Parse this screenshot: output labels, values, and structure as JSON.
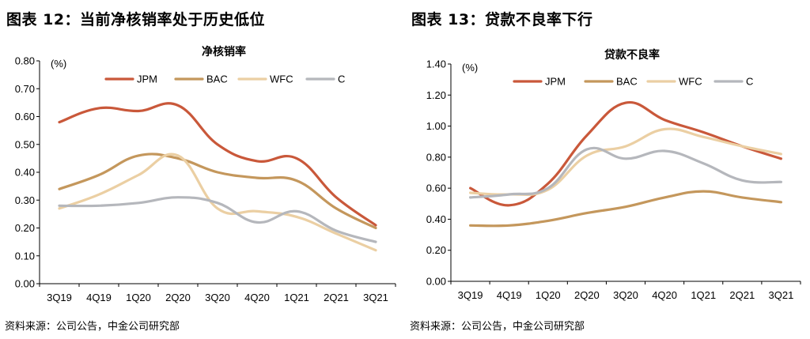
{
  "charts": [
    {
      "figure_title": "图表 12：当前净核销率处于历史低位",
      "source": "资料来源：公司公告，中金公司研究部"
    },
    {
      "figure_title": "图表 13：贷款不良率下行",
      "source": "资料来源：公司公告，中金公司研究部"
    }
  ],
  "chart_data": [
    {
      "type": "line",
      "title": "净核销率",
      "unit_label": "(%)",
      "categories": [
        "3Q19",
        "4Q19",
        "1Q20",
        "2Q20",
        "3Q20",
        "4Q20",
        "1Q21",
        "2Q21",
        "3Q21"
      ],
      "ylim": [
        0,
        0.8
      ],
      "yticks": [
        "0.00",
        "0.10",
        "0.20",
        "0.30",
        "0.40",
        "0.50",
        "0.60",
        "0.70",
        "0.80"
      ],
      "grid": false,
      "legend_position": "top",
      "series": [
        {
          "name": "JPM",
          "color": "#C9583A",
          "values": [
            0.58,
            0.63,
            0.62,
            0.64,
            0.5,
            0.44,
            0.45,
            0.31,
            0.21
          ]
        },
        {
          "name": "BAC",
          "color": "#C4975C",
          "values": [
            0.34,
            0.39,
            0.46,
            0.45,
            0.4,
            0.38,
            0.37,
            0.27,
            0.2
          ]
        },
        {
          "name": "WFC",
          "color": "#EBCFA3",
          "values": [
            0.27,
            0.32,
            0.39,
            0.46,
            0.27,
            0.26,
            0.24,
            0.18,
            0.12
          ]
        },
        {
          "name": "C",
          "color": "#B5B7BC",
          "values": [
            0.28,
            0.28,
            0.29,
            0.31,
            0.29,
            0.22,
            0.26,
            0.19,
            0.15
          ]
        }
      ]
    },
    {
      "type": "line",
      "title": "贷款不良率",
      "unit_label": "(%)",
      "categories": [
        "3Q19",
        "4Q19",
        "1Q20",
        "2Q20",
        "3Q20",
        "4Q20",
        "1Q21",
        "2Q21",
        "3Q21"
      ],
      "ylim": [
        0,
        1.4
      ],
      "yticks": [
        "0.00",
        "0.20",
        "0.40",
        "0.60",
        "0.80",
        "1.00",
        "1.20",
        "1.40"
      ],
      "grid": false,
      "legend_position": "top",
      "series": [
        {
          "name": "JPM",
          "color": "#C9583A",
          "values": [
            0.6,
            0.49,
            0.63,
            0.94,
            1.15,
            1.04,
            0.96,
            0.87,
            0.79
          ]
        },
        {
          "name": "BAC",
          "color": "#C4975C",
          "values": [
            0.36,
            0.36,
            0.39,
            0.44,
            0.48,
            0.54,
            0.58,
            0.54,
            0.51
          ]
        },
        {
          "name": "WFC",
          "color": "#EBCFA3",
          "values": [
            0.57,
            0.56,
            0.59,
            0.81,
            0.87,
            0.98,
            0.93,
            0.87,
            0.82
          ]
        },
        {
          "name": "C",
          "color": "#B5B7BC",
          "values": [
            0.54,
            0.56,
            0.6,
            0.85,
            0.79,
            0.84,
            0.76,
            0.65,
            0.64
          ]
        }
      ]
    }
  ]
}
